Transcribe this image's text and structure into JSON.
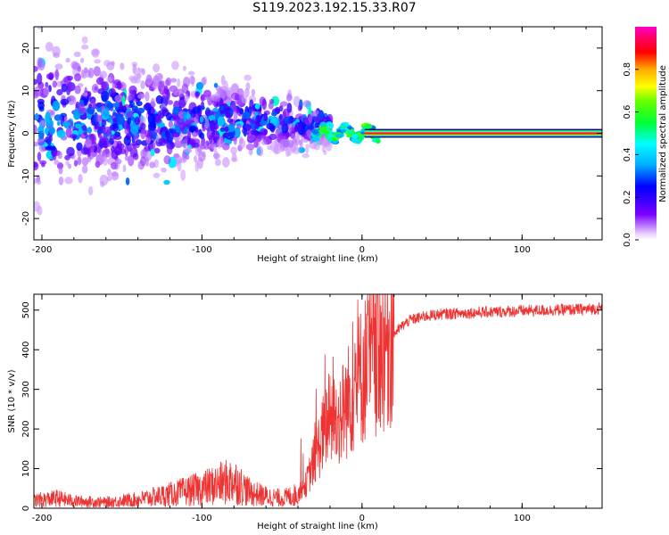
{
  "title": "S119.2023.192.15.33.R07",
  "chart_data": [
    {
      "type": "heatmap",
      "xlabel": "Height of straight line (km)",
      "ylabel": "Frequency (Hz)",
      "xlim": [
        -205,
        150
      ],
      "ylim": [
        -25,
        25
      ],
      "xticks": [
        -200,
        -100,
        0,
        100
      ],
      "yticks": [
        -20,
        -10,
        0,
        10,
        20
      ],
      "colorbar": {
        "label": "Normalized spectral amplitude",
        "range": [
          0,
          1
        ],
        "ticks": [
          "0.0",
          "0.2",
          "0.4",
          "0.6",
          "0.8"
        ],
        "colormap": "hsv-rainbow (purple→blue→cyan→green→yellow→red→magenta)"
      },
      "features": [
        {
          "description": "broad diffuse spectral blobs",
          "x_range": [
            -205,
            -20
          ],
          "freq_center": 3,
          "freq_spread": 12,
          "amplitude": 0.25
        },
        {
          "description": "narrow oscillating band",
          "x_range": [
            -30,
            10
          ],
          "freq_center": 0,
          "freq_spread": 2,
          "amplitude": 0.5
        },
        {
          "description": "steady carrier line",
          "x_range": [
            10,
            150
          ],
          "freq_center": 0,
          "amplitude": 0.9
        }
      ]
    },
    {
      "type": "line",
      "xlabel": "Height of straight line (km)",
      "ylabel": "SNR (10 * v/v)",
      "xlim": [
        -205,
        150
      ],
      "ylim": [
        0,
        540
      ],
      "xticks": [
        -200,
        -100,
        0,
        100
      ],
      "yticks": [
        0,
        100,
        200,
        300,
        400,
        500
      ],
      "color": "#ee3333",
      "series": [
        {
          "x": [
            -205,
            -190,
            -180,
            -160,
            -140,
            -120,
            -100,
            -90,
            -80,
            -70,
            -60,
            -50,
            -40,
            -35,
            -30,
            -25,
            -20,
            -15,
            -10,
            -5,
            0,
            5,
            10,
            15,
            20,
            25,
            30,
            40,
            50,
            60,
            80,
            100,
            120,
            140,
            150
          ],
          "y": [
            20,
            25,
            18,
            15,
            22,
            35,
            50,
            60,
            70,
            40,
            30,
            25,
            35,
            60,
            120,
            180,
            230,
            220,
            260,
            300,
            340,
            370,
            400,
            420,
            440,
            460,
            475,
            485,
            490,
            492,
            495,
            498,
            500,
            502,
            505
          ]
        }
      ]
    }
  ]
}
